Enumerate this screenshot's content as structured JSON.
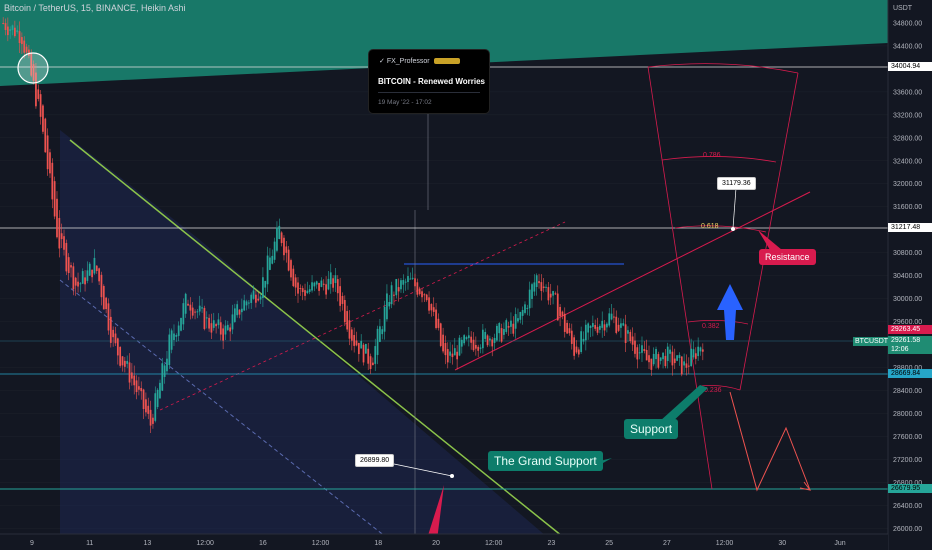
{
  "header": {
    "symbol": "Bitcoin / TetherUS",
    "interval": "15",
    "exchange": "BINANCE",
    "style": "Heikin Ashi"
  },
  "price_axis": {
    "currency": "USDT",
    "ticks": [
      "34800.00",
      "34400.00",
      "33600.00",
      "33200.00",
      "32800.00",
      "32400.00",
      "32000.00",
      "31600.00",
      "30800.00",
      "30400.00",
      "30000.00",
      "29600.00",
      "28800.00",
      "28400.00",
      "28000.00",
      "27600.00",
      "27200.00",
      "26800.00",
      "26400.00",
      "26000.00"
    ]
  },
  "time_axis": {
    "ticks": [
      "9",
      "11",
      "13",
      "12:00",
      "16",
      "12:00",
      "18",
      "20",
      "12:00",
      "23",
      "25",
      "27",
      "12:00",
      "30",
      "Jun"
    ]
  },
  "idea_card": {
    "author": "FX_Professor",
    "title": "BITCOIN - Renewed Worries",
    "date": "19 May '22 - 17:02"
  },
  "price_tags": [
    {
      "value": "34004.94",
      "bg": "#ffffff",
      "fg": "#000000"
    },
    {
      "value": "31217.48",
      "bg": "#ffffff",
      "fg": "#000000"
    },
    {
      "value": "29263.45",
      "bg": "#d81b4e",
      "fg": "#ffffff"
    },
    {
      "value": "29261.58",
      "bg": "#1f8c73",
      "fg": "#ffffff"
    },
    {
      "value": "12:06",
      "bg": "#1f8c73",
      "fg": "#ffffff"
    },
    {
      "value": "28669.84",
      "bg": "#26a6c8",
      "fg": "#000000"
    },
    {
      "value": "26679.95",
      "bg": "#26a69a",
      "fg": "#000000"
    }
  ],
  "symbol_tag": "BTCUSDT",
  "annotations": {
    "support": "Support",
    "grand_support": "The Grand Support",
    "resistance": "Resistance",
    "callout_top": "31179.36",
    "callout_bottom": "26899.80",
    "fib_786": "0.786",
    "fib_618": "0.618",
    "fib_382": "0.382",
    "fib_236": "0.236"
  },
  "colors": {
    "bg": "#131722",
    "up": "#26a69a",
    "down": "#ef5350",
    "trend": "#8bc34a",
    "fib": "#d81b4e",
    "arrow": "#2962ff"
  },
  "chart_data": {
    "type": "candlestick",
    "title": "Bitcoin / TetherUS, 15, BINANCE, Heikin Ashi",
    "ylabel": "USDT",
    "ylim": [
      25900,
      35200
    ],
    "x": [
      "May 8 12:00",
      "May 9",
      "May 9 12:00",
      "May 10",
      "May 10 12:00",
      "May 11",
      "May 11 12:00",
      "May 12",
      "May 12 12:00",
      "May 13",
      "May 13 12:00",
      "May 14",
      "May 14 12:00",
      "May 15",
      "May 15 12:00",
      "May 16",
      "May 16 12:00",
      "May 17",
      "May 17 12:00",
      "May 18",
      "May 18 12:00",
      "May 19",
      "May 19 12:00",
      "May 20",
      "May 20 12:00",
      "May 21",
      "May 21 12:00",
      "May 22",
      "May 22 12:00",
      "May 23",
      "May 23 12:00",
      "May 24",
      "May 24 12:00",
      "May 25",
      "May 25 12:00",
      "May 26",
      "May 26 12:00",
      "May 27",
      "May 27 12:00"
    ],
    "close": [
      34800,
      34600,
      33200,
      31000,
      30200,
      30600,
      29200,
      28600,
      27800,
      29200,
      30000,
      29600,
      29400,
      29900,
      30200,
      31200,
      30100,
      30200,
      30300,
      29300,
      28900,
      30100,
      30300,
      30100,
      28900,
      29200,
      29300,
      29400,
      29600,
      30400,
      29900,
      29100,
      29500,
      29700,
      29300,
      28900,
      29000,
      28800,
      29260
    ],
    "levels": {
      "resistance_top": 34004.94,
      "fib_618_level": 31217.48,
      "support_low": 28669.84,
      "grand_support": 26679.95,
      "last_price": 29261.58,
      "last_high_tag": 29263.45
    }
  }
}
